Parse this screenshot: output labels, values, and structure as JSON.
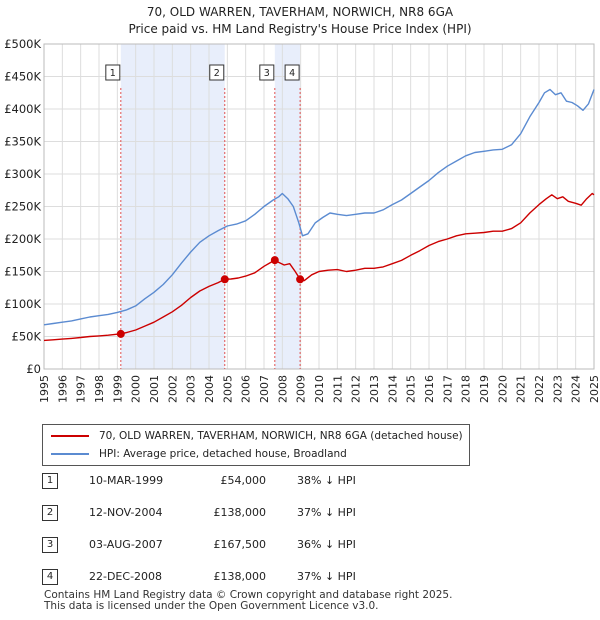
{
  "chart_data": {
    "type": "line",
    "title": "70, OLD WARREN, TAVERHAM, NORWICH, NR8 6GA",
    "subtitle": "Price paid vs. HM Land Registry's House Price Index (HPI)",
    "xlabel": "",
    "ylabel": "",
    "xlim": [
      1995,
      2025
    ],
    "ylim": [
      0,
      500000
    ],
    "y_ticks": [
      0,
      50000,
      100000,
      150000,
      200000,
      250000,
      300000,
      350000,
      400000,
      450000,
      500000
    ],
    "y_tick_labels": [
      "£0",
      "£50K",
      "£100K",
      "£150K",
      "£200K",
      "£250K",
      "£300K",
      "£350K",
      "£400K",
      "£450K",
      "£500K"
    ],
    "x_ticks": [
      1995,
      1996,
      1997,
      1998,
      1999,
      2000,
      2001,
      2002,
      2003,
      2004,
      2005,
      2006,
      2007,
      2008,
      2009,
      2010,
      2011,
      2012,
      2013,
      2014,
      2015,
      2016,
      2017,
      2018,
      2019,
      2020,
      2021,
      2022,
      2023,
      2024,
      2025
    ],
    "grid": true,
    "series": [
      {
        "name": "70, OLD WARREN, TAVERHAM, NORWICH, NR8 6GA (detached house)",
        "color": "#cc0000",
        "x": [
          1995.0,
          1995.5,
          1996.0,
          1996.5,
          1997.0,
          1997.5,
          1998.0,
          1998.5,
          1999.0,
          1999.19,
          1999.5,
          2000.0,
          2000.5,
          2001.0,
          2001.5,
          2002.0,
          2002.5,
          2003.0,
          2003.5,
          2004.0,
          2004.5,
          2004.86,
          2005.2,
          2005.6,
          2006.0,
          2006.5,
          2007.0,
          2007.3,
          2007.59,
          2007.8,
          2008.1,
          2008.4,
          2008.7,
          2008.97,
          2009.2,
          2009.6,
          2010.0,
          2010.5,
          2011.0,
          2011.5,
          2012.0,
          2012.5,
          2013.0,
          2013.5,
          2014.0,
          2014.5,
          2015.0,
          2015.5,
          2016.0,
          2016.5,
          2017.0,
          2017.5,
          2018.0,
          2018.5,
          2019.0,
          2019.5,
          2020.0,
          2020.5,
          2021.0,
          2021.5,
          2022.0,
          2022.4,
          2022.7,
          2023.0,
          2023.3,
          2023.6,
          2024.0,
          2024.3,
          2024.6,
          2024.9,
          2025.0
        ],
        "values": [
          44000,
          45000,
          46000,
          47000,
          48500,
          50000,
          51000,
          52000,
          53500,
          54000,
          56000,
          60000,
          66000,
          72000,
          80000,
          88000,
          98000,
          110000,
          120000,
          127000,
          133000,
          138000,
          138500,
          140000,
          143000,
          148000,
          158000,
          163000,
          167500,
          164000,
          160000,
          162000,
          150000,
          138000,
          136000,
          145000,
          150000,
          152000,
          153000,
          150000,
          152000,
          155000,
          155000,
          157000,
          162000,
          167000,
          175000,
          182000,
          190000,
          196000,
          200000,
          205000,
          208000,
          209000,
          210000,
          212000,
          212000,
          216000,
          225000,
          240000,
          253000,
          262000,
          268000,
          262000,
          265000,
          258000,
          255000,
          252000,
          262000,
          270000,
          268000
        ]
      },
      {
        "name": "HPI: Average price, detached house, Broadland",
        "color": "#5b8bd1",
        "x": [
          1995.0,
          1995.5,
          1996.0,
          1996.5,
          1997.0,
          1997.5,
          1998.0,
          1998.5,
          1999.0,
          1999.5,
          2000.0,
          2000.5,
          2001.0,
          2001.5,
          2002.0,
          2002.5,
          2003.0,
          2003.5,
          2004.0,
          2004.5,
          2005.0,
          2005.5,
          2006.0,
          2006.5,
          2007.0,
          2007.5,
          2007.8,
          2008.0,
          2008.3,
          2008.6,
          2008.9,
          2009.1,
          2009.4,
          2009.8,
          2010.2,
          2010.6,
          2011.0,
          2011.5,
          2012.0,
          2012.5,
          2013.0,
          2013.5,
          2014.0,
          2014.5,
          2015.0,
          2015.5,
          2016.0,
          2016.5,
          2017.0,
          2017.5,
          2018.0,
          2018.5,
          2019.0,
          2019.5,
          2020.0,
          2020.5,
          2021.0,
          2021.5,
          2022.0,
          2022.3,
          2022.6,
          2022.9,
          2023.2,
          2023.5,
          2023.8,
          2024.1,
          2024.4,
          2024.7,
          2025.0
        ],
        "values": [
          68000,
          70000,
          72000,
          74000,
          77000,
          80000,
          82000,
          84000,
          87000,
          91000,
          97000,
          108000,
          118000,
          130000,
          145000,
          163000,
          180000,
          195000,
          205000,
          213000,
          220000,
          223000,
          228000,
          238000,
          250000,
          260000,
          265000,
          270000,
          262000,
          250000,
          225000,
          205000,
          208000,
          225000,
          233000,
          240000,
          238000,
          236000,
          238000,
          240000,
          240000,
          245000,
          253000,
          260000,
          270000,
          280000,
          290000,
          302000,
          312000,
          320000,
          328000,
          333000,
          335000,
          337000,
          338000,
          345000,
          362000,
          388000,
          410000,
          425000,
          430000,
          422000,
          425000,
          412000,
          410000,
          405000,
          398000,
          408000,
          430000
        ]
      }
    ],
    "shaded_ranges": [
      [
        1999.19,
        2004.86
      ],
      [
        2007.59,
        2008.97
      ]
    ],
    "transactions": [
      {
        "n": "1",
        "x": 1999.19,
        "price": 54000
      },
      {
        "n": "2",
        "x": 2004.86,
        "price": 138000
      },
      {
        "n": "3",
        "x": 2007.59,
        "price": 167500
      },
      {
        "n": "4",
        "x": 2008.97,
        "price": 138000
      }
    ]
  },
  "legend": {
    "items": [
      {
        "label": "70, OLD WARREN, TAVERHAM, NORWICH, NR8 6GA (detached house)",
        "color": "#cc0000"
      },
      {
        "label": "HPI: Average price, detached house, Broadland",
        "color": "#5b8bd1"
      }
    ]
  },
  "table": {
    "rows": [
      {
        "n": "1",
        "date": "10-MAR-1999",
        "price": "£54,000",
        "hpi": "38% ↓ HPI"
      },
      {
        "n": "2",
        "date": "12-NOV-2004",
        "price": "£138,000",
        "hpi": "37% ↓ HPI"
      },
      {
        "n": "3",
        "date": "03-AUG-2007",
        "price": "£167,500",
        "hpi": "36% ↓ HPI"
      },
      {
        "n": "4",
        "date": "22-DEC-2008",
        "price": "£138,000",
        "hpi": "37% ↓ HPI"
      }
    ]
  },
  "footer": {
    "line1": "Contains HM Land Registry data © Crown copyright and database right 2025.",
    "line2": "This data is licensed under the Open Government Licence v3.0."
  }
}
